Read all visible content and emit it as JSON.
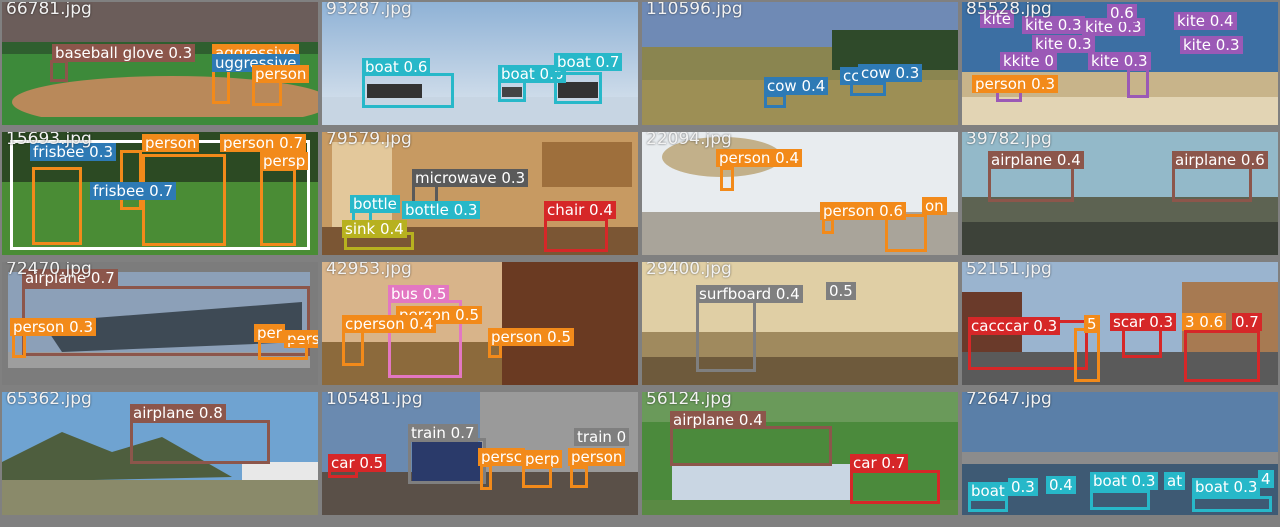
{
  "colors": {
    "background": "#808080",
    "boat": "#27b8c9",
    "cow": "#2e7ab5",
    "kite": "#9b59b6",
    "person": "#f28a1a",
    "frisbee": "#2e7ab5",
    "microwave": "#5a5a5a",
    "bottle": "#27b8c9",
    "sink": "#b7b11f",
    "chair": "#d62728",
    "airplane": "#8c564b",
    "bus": "#e377c2",
    "surfboard": "#7f7f7f",
    "car": "#d62728",
    "train": "#7f7f7f",
    "baseball_glove": "#8c564b"
  },
  "tiles": [
    {
      "filename": "66781.jpg",
      "labels": [
        {
          "text": "baseball glove 0.3",
          "cls": "baseball_glove"
        },
        {
          "text": "aggressive",
          "cls": "person"
        },
        {
          "text": "uggressive",
          "cls": "cow"
        },
        {
          "text": "person",
          "cls": "person"
        }
      ]
    },
    {
      "filename": "93287.jpg",
      "labels": [
        {
          "text": "boat 0.6",
          "cls": "boat"
        },
        {
          "text": "boat 0.6",
          "cls": "boat"
        },
        {
          "text": "boat 0.7",
          "cls": "boat"
        }
      ]
    },
    {
      "filename": "110596.jpg",
      "labels": [
        {
          "text": "cow 0.4",
          "cls": "cow"
        },
        {
          "text": "cc",
          "cls": "cow"
        },
        {
          "text": "cow 0.3",
          "cls": "cow"
        }
      ]
    },
    {
      "filename": "85528.jpg",
      "labels": [
        {
          "text": "kite",
          "cls": "kite"
        },
        {
          "text": "kite 0.3",
          "cls": "kite"
        },
        {
          "text": "kite 0.3",
          "cls": "kite"
        },
        {
          "text": "0.6",
          "cls": "kite"
        },
        {
          "text": "kite 0.4",
          "cls": "kite"
        },
        {
          "text": "kite 0.3",
          "cls": "kite"
        },
        {
          "text": "kite 0.3",
          "cls": "kite"
        },
        {
          "text": "kkite 0",
          "cls": "kite"
        },
        {
          "text": "kite 0.3",
          "cls": "kite"
        },
        {
          "text": "person 0.3",
          "cls": "person"
        }
      ]
    },
    {
      "filename": "15693.jpg",
      "labels": [
        {
          "text": "frisbee 0.3",
          "cls": "frisbee"
        },
        {
          "text": "person",
          "cls": "person"
        },
        {
          "text": "person 0.7",
          "cls": "person"
        },
        {
          "text": "frisbee 0.7",
          "cls": "frisbee"
        },
        {
          "text": "persp",
          "cls": "person"
        }
      ]
    },
    {
      "filename": "79579.jpg",
      "labels": [
        {
          "text": "microwave 0.3",
          "cls": "microwave"
        },
        {
          "text": "bottle",
          "cls": "bottle"
        },
        {
          "text": "bottle 0.3",
          "cls": "bottle"
        },
        {
          "text": "sink 0.4",
          "cls": "sink"
        },
        {
          "text": "chair 0.4",
          "cls": "chair"
        }
      ]
    },
    {
      "filename": "22094.jpg",
      "labels": [
        {
          "text": "person 0.4",
          "cls": "person"
        },
        {
          "text": "person 0.6",
          "cls": "person"
        },
        {
          "text": "on",
          "cls": "person"
        }
      ]
    },
    {
      "filename": "39782.jpg",
      "labels": [
        {
          "text": "airplane 0.4",
          "cls": "airplane"
        },
        {
          "text": "airplane 0.6",
          "cls": "airplane"
        }
      ]
    },
    {
      "filename": "72470.jpg",
      "labels": [
        {
          "text": "airplane 0.7",
          "cls": "airplane"
        },
        {
          "text": "person 0.3",
          "cls": "person"
        },
        {
          "text": "per",
          "cls": "person"
        },
        {
          "text": "pers",
          "cls": "person"
        }
      ]
    },
    {
      "filename": "42953.jpg",
      "labels": [
        {
          "text": "bus 0.5",
          "cls": "bus"
        },
        {
          "text": "person 0.5",
          "cls": "person"
        },
        {
          "text": "cperson 0.4",
          "cls": "person"
        },
        {
          "text": "person 0.5",
          "cls": "person"
        }
      ]
    },
    {
      "filename": "29400.jpg",
      "labels": [
        {
          "text": "surfboard 0.4",
          "cls": "surfboard"
        },
        {
          "text": "0.5",
          "cls": "surfboard"
        }
      ]
    },
    {
      "filename": "52151.jpg",
      "labels": [
        {
          "text": "cacccar 0.3",
          "cls": "car"
        },
        {
          "text": "5",
          "cls": "person"
        },
        {
          "text": "scar 0.3",
          "cls": "car"
        },
        {
          "text": "3 0.6",
          "cls": "person"
        },
        {
          "text": "0.7",
          "cls": "car"
        }
      ]
    },
    {
      "filename": "65362.jpg",
      "labels": [
        {
          "text": "airplane 0.8",
          "cls": "airplane"
        }
      ]
    },
    {
      "filename": "105481.jpg",
      "labels": [
        {
          "text": "train 0.7",
          "cls": "train"
        },
        {
          "text": "train 0",
          "cls": "train"
        },
        {
          "text": "car 0.5",
          "cls": "car"
        },
        {
          "text": "persc",
          "cls": "person"
        },
        {
          "text": "perp",
          "cls": "person"
        },
        {
          "text": "person",
          "cls": "person"
        }
      ]
    },
    {
      "filename": "56124.jpg",
      "labels": [
        {
          "text": "airplane 0.4",
          "cls": "airplane"
        },
        {
          "text": "car 0.7",
          "cls": "car"
        }
      ]
    },
    {
      "filename": "72647.jpg",
      "labels": [
        {
          "text": "boat",
          "cls": "boat"
        },
        {
          "text": "0.3",
          "cls": "boat"
        },
        {
          "text": "0.4",
          "cls": "boat"
        },
        {
          "text": "boat 0.3",
          "cls": "boat"
        },
        {
          "text": "at",
          "cls": "boat"
        },
        {
          "text": "boat 0.3",
          "cls": "boat"
        },
        {
          "text": "4",
          "cls": "boat"
        }
      ]
    }
  ]
}
